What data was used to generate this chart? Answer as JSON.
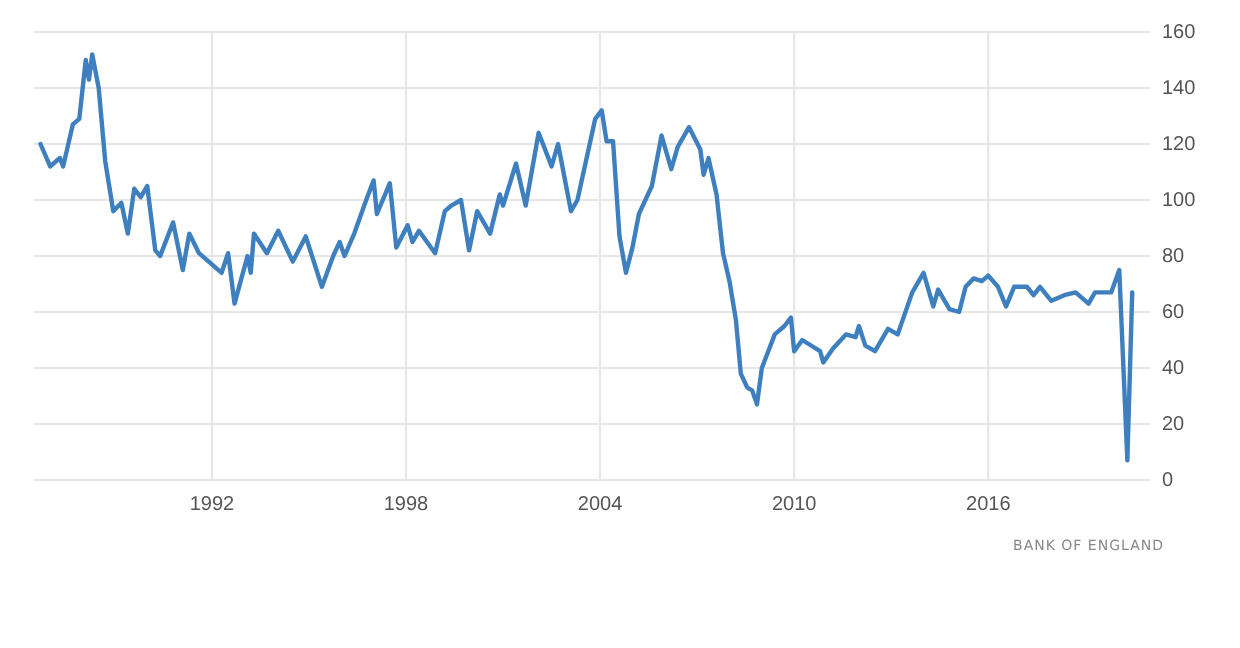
{
  "chart_data": {
    "type": "line",
    "annotations": [
      "BANK OF ENGLAND"
    ],
    "xlim": [
      1986.5,
      2021
    ],
    "xticks": [
      1992,
      1998,
      2004,
      2010,
      2016
    ],
    "ylim": [
      0,
      160
    ],
    "yticks": [
      0,
      20,
      40,
      60,
      80,
      100,
      120,
      140,
      160
    ],
    "grid": true,
    "series": [
      {
        "color": "#3e7fbf",
        "x": [
          1986.7,
          1987.0,
          1987.3,
          1987.4,
          1987.7,
          1987.9,
          1988.1,
          1988.2,
          1988.3,
          1988.5,
          1988.7,
          1988.95,
          1989.2,
          1989.4,
          1989.6,
          1989.8,
          1990.0,
          1990.25,
          1990.4,
          1990.8,
          1991.1,
          1991.3,
          1991.6,
          1992.0,
          1992.3,
          1992.5,
          1992.7,
          1993.1,
          1993.2,
          1993.3,
          1993.7,
          1994.05,
          1994.5,
          1994.9,
          1995.4,
          1995.75,
          1995.95,
          1996.1,
          1996.4,
          1996.8,
          1997.0,
          1997.1,
          1997.5,
          1997.7,
          1998.05,
          1998.2,
          1998.4,
          1998.9,
          1999.2,
          1999.4,
          1999.7,
          1999.95,
          2000.2,
          2000.6,
          2000.9,
          2001.0,
          2001.4,
          2001.7,
          2002.1,
          2002.5,
          2002.7,
          2003.1,
          2003.3,
          2003.85,
          2004.05,
          2004.2,
          2004.4,
          2004.6,
          2004.8,
          2005.0,
          2005.2,
          2005.6,
          2005.9,
          2006.2,
          2006.4,
          2006.75,
          2007.1,
          2007.2,
          2007.35,
          2007.6,
          2007.8,
          2008.0,
          2008.2,
          2008.35,
          2008.55,
          2008.7,
          2008.85,
          2009.0,
          2009.4,
          2009.7,
          2009.9,
          2010.0,
          2010.25,
          2010.8,
          2010.9,
          2011.2,
          2011.6,
          2011.9,
          2012.0,
          2012.2,
          2012.5,
          2012.9,
          2013.2,
          2013.65,
          2014.0,
          2014.3,
          2014.45,
          2014.8,
          2015.1,
          2015.3,
          2015.55,
          2015.8,
          2016.0,
          2016.3,
          2016.55,
          2016.8,
          2017.2,
          2017.4,
          2017.6,
          2017.95,
          2018.35,
          2018.7,
          2019.1,
          2019.3,
          2019.8,
          2020.05,
          2020.3,
          2020.45
        ],
        "values": [
          120,
          112,
          115,
          112,
          127,
          129,
          150,
          143,
          152,
          140,
          114,
          96,
          99,
          88,
          104,
          101,
          105,
          82,
          80,
          92,
          75,
          88,
          81,
          77,
          74,
          81,
          63,
          80,
          74,
          88,
          81,
          89,
          78,
          87,
          69,
          80,
          85,
          80,
          88,
          101,
          107,
          95,
          106,
          83,
          91,
          85,
          89,
          81,
          96,
          98,
          100,
          82,
          96,
          88,
          102,
          98,
          113,
          98,
          124,
          112,
          120,
          96,
          100,
          129,
          132,
          121,
          121,
          87,
          74,
          83,
          95,
          105,
          123,
          111,
          119,
          126,
          118,
          109,
          115,
          102,
          81,
          71,
          57,
          38,
          33,
          32,
          27,
          40,
          52,
          55,
          58,
          46,
          50,
          46,
          42,
          47,
          52,
          51,
          55,
          48,
          46,
          54,
          52,
          67,
          74,
          62,
          68,
          61,
          60,
          69,
          72,
          71,
          73,
          69,
          62,
          69,
          69,
          66,
          69,
          64,
          66,
          67,
          63,
          67,
          67,
          75,
          7,
          67
        ]
      }
    ]
  }
}
